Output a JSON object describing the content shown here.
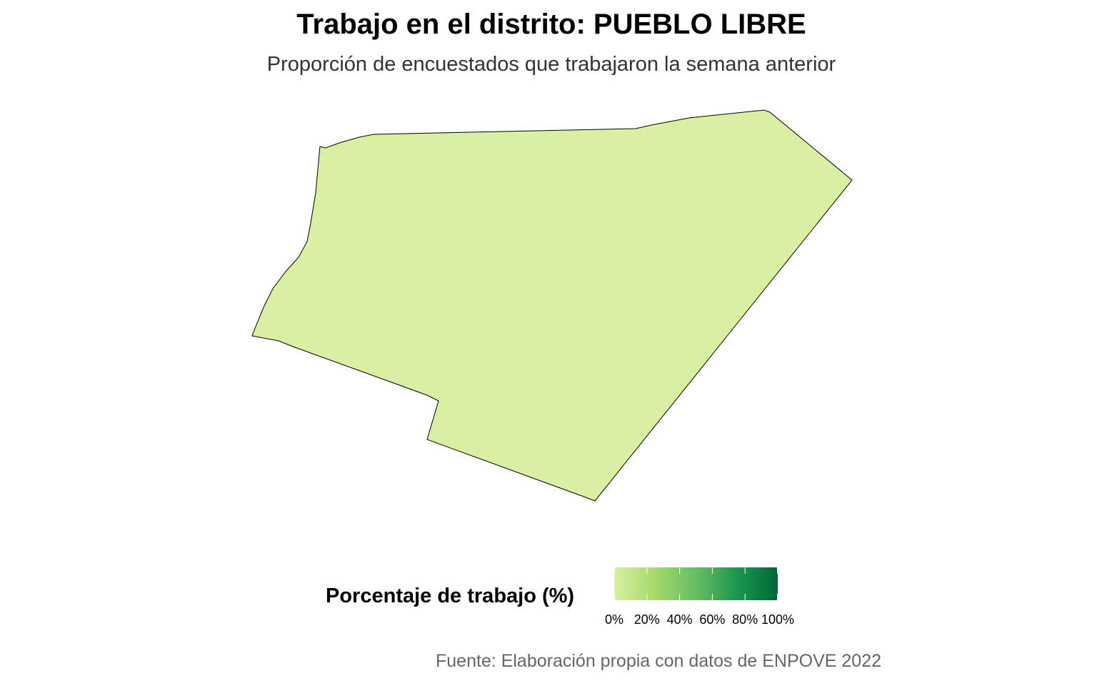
{
  "title": "Trabajo en el distrito: PUEBLO LIBRE",
  "subtitle": "Proporción de encuestados que trabajaron la semana anterior",
  "map": {
    "district_name": "PUEBLO LIBRE",
    "fill_color": "#d9f0a3",
    "stroke_color": "#000000"
  },
  "legend": {
    "title": "Porcentaje de trabajo (%)",
    "ticks": [
      "0%",
      "20%",
      "40%",
      "60%",
      "80%",
      "100%"
    ],
    "gradient_colors": [
      "#d9f0a3",
      "#a6d96a",
      "#66bd63",
      "#1a9850",
      "#006837"
    ],
    "range": [
      0,
      100
    ]
  },
  "caption": "Fuente: Elaboración propia con datos de ENPOVE 2022"
}
